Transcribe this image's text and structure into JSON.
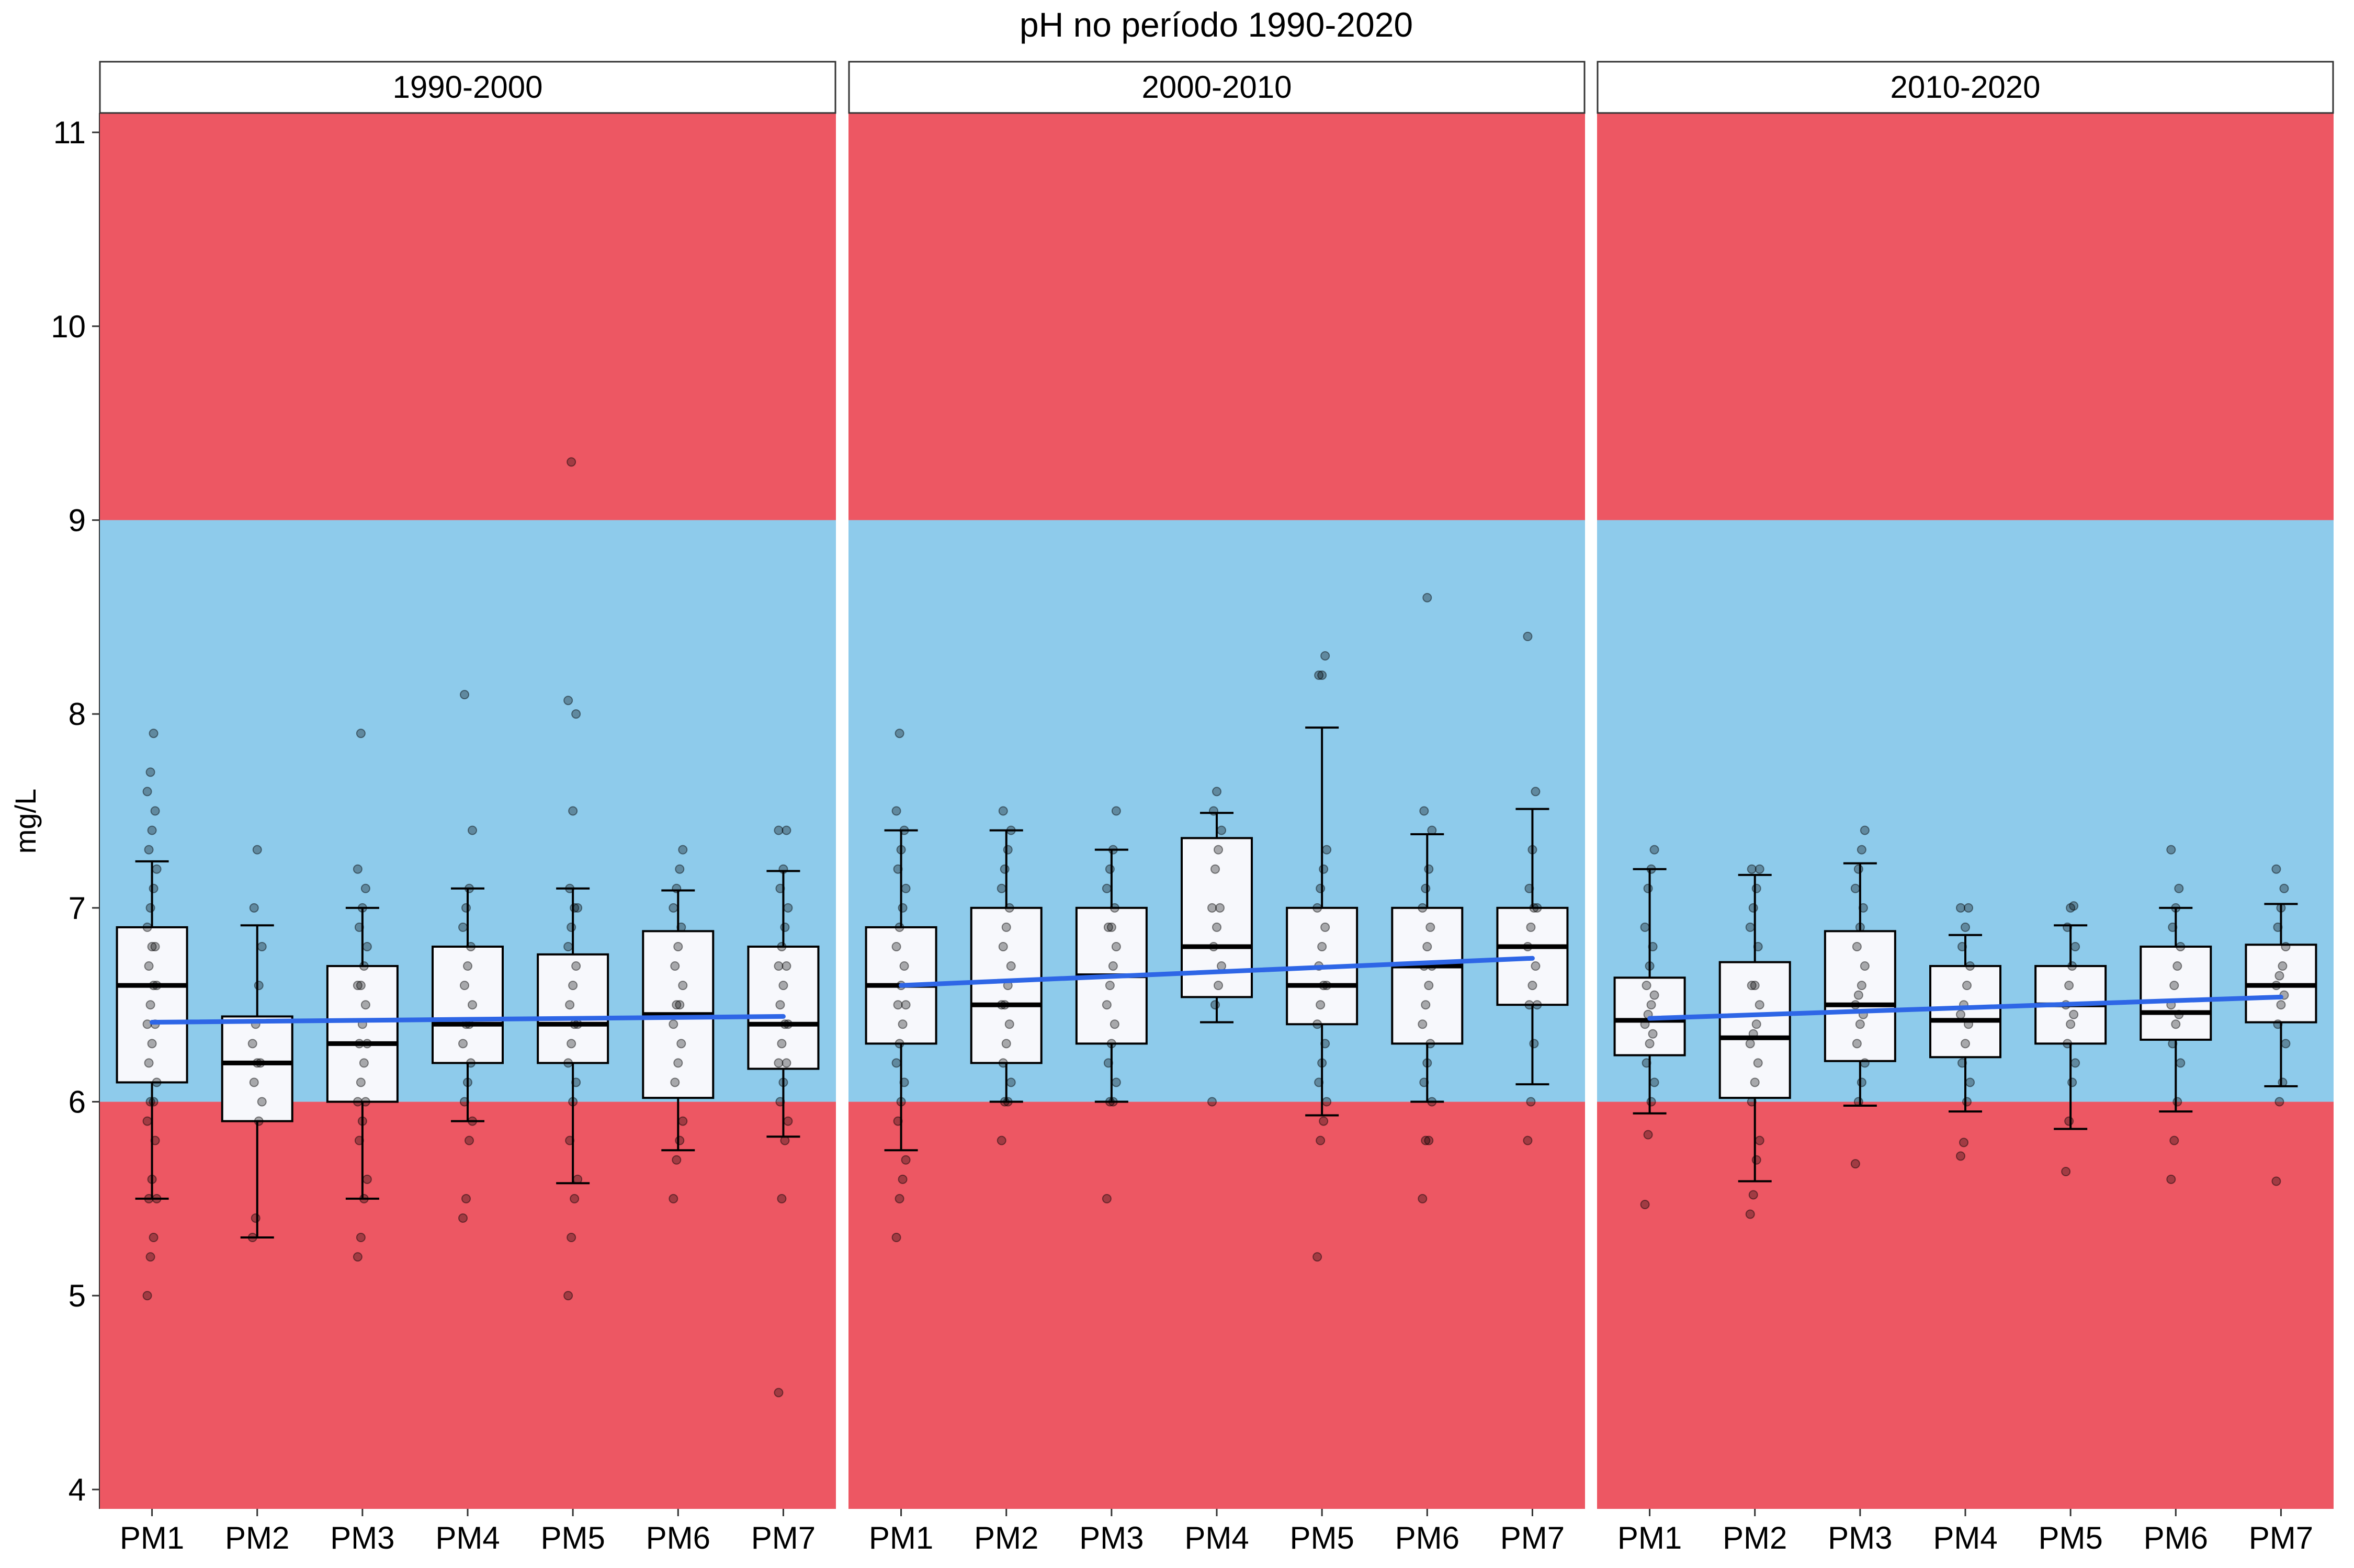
{
  "chart_data": {
    "type": "boxplot",
    "title": "pH no período 1990-2020",
    "xlabel": "",
    "ylabel": "mg/L",
    "ylim": [
      3.9,
      11.1
    ],
    "yticks": [
      4,
      5,
      6,
      7,
      8,
      9,
      10,
      11
    ],
    "grid": false,
    "legend": "none",
    "categories": [
      "PM1",
      "PM2",
      "PM3",
      "PM4",
      "PM5",
      "PM6",
      "PM7"
    ],
    "bands": [
      {
        "from": 3.9,
        "to": 6,
        "color": "#ED5763"
      },
      {
        "from": 6,
        "to": 9,
        "color": "#8ECBEB"
      },
      {
        "from": 9,
        "to": 11.1,
        "color": "#ED5763"
      }
    ],
    "colors": {
      "box_fill": "#F7F8FC",
      "box_stroke": "#000000",
      "trend": "#2E66E6",
      "point": "#000000",
      "strip_fill": "#FFFFFF"
    },
    "panels": [
      {
        "label": "1990-2000",
        "boxes": [
          {
            "cat": "PM1",
            "whisker_low": 5.5,
            "q1": 6.1,
            "median": 6.6,
            "q3": 6.9,
            "whisker_high": 7.24,
            "points": [
              5.0,
              5.2,
              5.3,
              5.5,
              5.5,
              5.6,
              5.8,
              5.9,
              6.0,
              6.0,
              6.1,
              6.2,
              6.3,
              6.4,
              6.4,
              6.5,
              6.6,
              6.6,
              6.7,
              6.8,
              6.8,
              6.9,
              7.0,
              7.1,
              7.2,
              7.3,
              7.4,
              7.5,
              7.6,
              7.7,
              7.9
            ]
          },
          {
            "cat": "PM2",
            "whisker_low": 5.3,
            "q1": 5.9,
            "median": 6.2,
            "q3": 6.44,
            "whisker_high": 6.91,
            "points": [
              5.3,
              5.4,
              5.9,
              6.0,
              6.1,
              6.2,
              6.2,
              6.3,
              6.4,
              6.6,
              6.8,
              7.0,
              7.3
            ]
          },
          {
            "cat": "PM3",
            "whisker_low": 5.5,
            "q1": 6.0,
            "median": 6.3,
            "q3": 6.7,
            "whisker_high": 7.0,
            "points": [
              5.2,
              5.3,
              5.5,
              5.6,
              5.8,
              5.9,
              6.0,
              6.0,
              6.1,
              6.2,
              6.3,
              6.3,
              6.4,
              6.5,
              6.6,
              6.6,
              6.7,
              6.8,
              6.9,
              7.0,
              7.1,
              7.2,
              7.9
            ]
          },
          {
            "cat": "PM4",
            "whisker_low": 5.9,
            "q1": 6.2,
            "median": 6.4,
            "q3": 6.8,
            "whisker_high": 7.1,
            "points": [
              5.4,
              5.5,
              5.8,
              5.9,
              6.0,
              6.1,
              6.2,
              6.3,
              6.4,
              6.4,
              6.5,
              6.6,
              6.7,
              6.8,
              6.9,
              7.0,
              7.1,
              7.4,
              8.1
            ]
          },
          {
            "cat": "PM5",
            "whisker_low": 5.58,
            "q1": 6.2,
            "median": 6.4,
            "q3": 6.76,
            "whisker_high": 7.1,
            "points": [
              5.0,
              5.3,
              5.5,
              5.6,
              5.8,
              6.0,
              6.1,
              6.2,
              6.3,
              6.4,
              6.4,
              6.5,
              6.6,
              6.7,
              6.8,
              6.9,
              7.0,
              7.0,
              7.1,
              7.5,
              8.0,
              8.07,
              9.3
            ]
          },
          {
            "cat": "PM6",
            "whisker_low": 5.75,
            "q1": 6.02,
            "median": 6.45,
            "q3": 6.88,
            "whisker_high": 7.09,
            "points": [
              5.5,
              5.7,
              5.8,
              5.9,
              6.1,
              6.2,
              6.3,
              6.4,
              6.5,
              6.5,
              6.6,
              6.7,
              6.8,
              6.9,
              7.0,
              7.1,
              7.2,
              7.3
            ]
          },
          {
            "cat": "PM7",
            "whisker_low": 5.82,
            "q1": 6.17,
            "median": 6.4,
            "q3": 6.8,
            "whisker_high": 7.19,
            "points": [
              4.5,
              5.5,
              5.8,
              5.9,
              6.0,
              6.1,
              6.2,
              6.2,
              6.3,
              6.4,
              6.4,
              6.5,
              6.6,
              6.7,
              6.7,
              6.8,
              6.9,
              7.0,
              7.1,
              7.2,
              7.4,
              7.4
            ]
          }
        ],
        "trend": {
          "start": 6.41,
          "end": 6.44
        }
      },
      {
        "label": "2000-2010",
        "boxes": [
          {
            "cat": "PM1",
            "whisker_low": 5.75,
            "q1": 6.3,
            "median": 6.6,
            "q3": 6.9,
            "whisker_high": 7.4,
            "points": [
              5.3,
              5.5,
              5.6,
              5.7,
              5.9,
              6.0,
              6.1,
              6.2,
              6.3,
              6.4,
              6.5,
              6.5,
              6.6,
              6.7,
              6.8,
              6.9,
              7.0,
              7.1,
              7.2,
              7.3,
              7.4,
              7.5,
              7.9
            ]
          },
          {
            "cat": "PM2",
            "whisker_low": 6.0,
            "q1": 6.2,
            "median": 6.5,
            "q3": 7.0,
            "whisker_high": 7.4,
            "points": [
              5.8,
              6.0,
              6.0,
              6.1,
              6.2,
              6.3,
              6.4,
              6.5,
              6.5,
              6.6,
              6.7,
              6.8,
              6.9,
              7.0,
              7.1,
              7.2,
              7.3,
              7.4,
              7.5
            ]
          },
          {
            "cat": "PM3",
            "whisker_low": 6.0,
            "q1": 6.3,
            "median": 6.65,
            "q3": 7.0,
            "whisker_high": 7.3,
            "points": [
              5.5,
              6.0,
              6.0,
              6.1,
              6.2,
              6.3,
              6.4,
              6.5,
              6.6,
              6.7,
              6.8,
              6.9,
              6.9,
              7.0,
              7.1,
              7.2,
              7.3,
              7.5
            ]
          },
          {
            "cat": "PM4",
            "whisker_low": 6.41,
            "q1": 6.54,
            "median": 6.8,
            "q3": 7.36,
            "whisker_high": 7.49,
            "points": [
              6.0,
              6.5,
              6.6,
              6.7,
              6.8,
              6.9,
              7.0,
              7.0,
              7.2,
              7.3,
              7.4,
              7.5,
              7.6
            ]
          },
          {
            "cat": "PM5",
            "whisker_low": 5.93,
            "q1": 6.4,
            "median": 6.6,
            "q3": 7.0,
            "whisker_high": 7.93,
            "points": [
              5.2,
              5.8,
              5.9,
              6.0,
              6.1,
              6.2,
              6.3,
              6.4,
              6.5,
              6.6,
              6.6,
              6.7,
              6.8,
              6.9,
              7.0,
              7.1,
              7.2,
              7.3,
              8.2,
              8.2,
              8.3
            ]
          },
          {
            "cat": "PM6",
            "whisker_low": 6.0,
            "q1": 6.3,
            "median": 6.7,
            "q3": 7.0,
            "whisker_high": 7.38,
            "points": [
              5.5,
              5.8,
              5.8,
              6.0,
              6.1,
              6.2,
              6.3,
              6.4,
              6.5,
              6.6,
              6.7,
              6.7,
              6.8,
              6.9,
              7.0,
              7.1,
              7.2,
              7.4,
              7.5,
              8.6
            ]
          },
          {
            "cat": "PM7",
            "whisker_low": 6.09,
            "q1": 6.5,
            "median": 6.8,
            "q3": 7.0,
            "whisker_high": 7.51,
            "points": [
              5.8,
              6.0,
              6.3,
              6.5,
              6.5,
              6.6,
              6.7,
              6.8,
              6.9,
              7.0,
              7.0,
              7.1,
              7.3,
              7.6,
              8.4
            ]
          }
        ],
        "trend": {
          "start": 6.6,
          "end": 6.74
        }
      },
      {
        "label": "2010-2020",
        "boxes": [
          {
            "cat": "PM1",
            "whisker_low": 5.94,
            "q1": 6.24,
            "median": 6.42,
            "q3": 6.64,
            "whisker_high": 7.2,
            "points": [
              5.47,
              5.83,
              6.0,
              6.1,
              6.2,
              6.3,
              6.35,
              6.4,
              6.45,
              6.5,
              6.55,
              6.6,
              6.7,
              6.8,
              6.9,
              7.1,
              7.2,
              7.3
            ]
          },
          {
            "cat": "PM2",
            "whisker_low": 5.59,
            "q1": 6.02,
            "median": 6.33,
            "q3": 6.72,
            "whisker_high": 7.17,
            "points": [
              5.42,
              5.52,
              5.7,
              5.8,
              6.0,
              6.1,
              6.2,
              6.3,
              6.35,
              6.4,
              6.5,
              6.6,
              6.6,
              6.8,
              6.9,
              7.0,
              7.1,
              7.2,
              7.2
            ]
          },
          {
            "cat": "PM3",
            "whisker_low": 5.98,
            "q1": 6.21,
            "median": 6.5,
            "q3": 6.88,
            "whisker_high": 7.23,
            "points": [
              5.68,
              6.0,
              6.1,
              6.2,
              6.3,
              6.4,
              6.45,
              6.5,
              6.55,
              6.6,
              6.7,
              6.8,
              6.9,
              7.0,
              7.1,
              7.2,
              7.3,
              7.4
            ]
          },
          {
            "cat": "PM4",
            "whisker_low": 5.95,
            "q1": 6.23,
            "median": 6.42,
            "q3": 6.7,
            "whisker_high": 6.86,
            "points": [
              5.72,
              5.79,
              6.0,
              6.1,
              6.2,
              6.3,
              6.4,
              6.45,
              6.5,
              6.6,
              6.7,
              6.8,
              6.9,
              7.0,
              7.0
            ]
          },
          {
            "cat": "PM5",
            "whisker_low": 5.86,
            "q1": 6.3,
            "median": 6.5,
            "q3": 6.7,
            "whisker_high": 6.91,
            "points": [
              5.64,
              5.9,
              6.1,
              6.2,
              6.3,
              6.4,
              6.45,
              6.5,
              6.6,
              6.7,
              6.8,
              6.9,
              7.0,
              7.01
            ]
          },
          {
            "cat": "PM6",
            "whisker_low": 5.95,
            "q1": 6.32,
            "median": 6.46,
            "q3": 6.8,
            "whisker_high": 7.0,
            "points": [
              5.6,
              5.8,
              6.0,
              6.2,
              6.3,
              6.4,
              6.45,
              6.5,
              6.6,
              6.7,
              6.8,
              6.9,
              7.0,
              7.1,
              7.3
            ]
          },
          {
            "cat": "PM7",
            "whisker_low": 6.08,
            "q1": 6.41,
            "median": 6.6,
            "q3": 6.81,
            "whisker_high": 7.02,
            "points": [
              5.59,
              6.0,
              6.1,
              6.3,
              6.4,
              6.5,
              6.55,
              6.6,
              6.65,
              6.7,
              6.8,
              6.9,
              7.0,
              7.1,
              7.2
            ]
          }
        ],
        "trend": {
          "start": 6.43,
          "end": 6.54
        }
      }
    ]
  }
}
